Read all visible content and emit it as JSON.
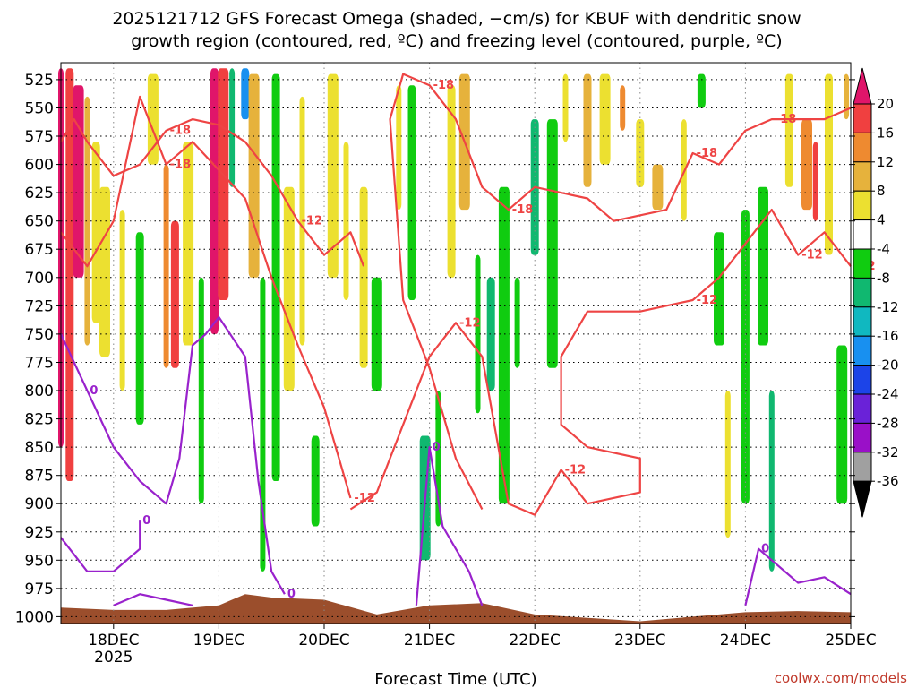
{
  "chart_data": {
    "type": "heatmap",
    "title_line1": "2025121712 GFS Forecast Omega (shaded, −cm/s) for KBUF with dendritic snow",
    "title_line2": "growth region (contoured, red, ºC) and freezing level (contoured, purple, ºC)",
    "xlabel": "Forecast Time (UTC)",
    "credit": "coolwx.com/models",
    "x_ticks": [
      "18DEC",
      "19DEC",
      "20DEC",
      "21DEC",
      "22DEC",
      "23DEC",
      "24DEC",
      "25DEC"
    ],
    "x_year": "2025",
    "x_range": [
      "2025-12-17T12",
      "2025-12-25T00"
    ],
    "y_ticks": [
      "525",
      "550",
      "575",
      "600",
      "625",
      "650",
      "675",
      "700",
      "725",
      "750",
      "775",
      "800",
      "825",
      "850",
      "875",
      "900",
      "925",
      "950",
      "975",
      "1000"
    ],
    "y_range": [
      1006,
      510
    ],
    "colorbar_ticks": [
      "20",
      "16",
      "12",
      "8",
      "4",
      "-4",
      "-8",
      "-12",
      "-16",
      "-20",
      "-24",
      "-28",
      "-32",
      "-36"
    ],
    "colorbar_bins": [
      {
        "range": [
          20,
          24
        ],
        "color": "#e0156a"
      },
      {
        "range": [
          16,
          20
        ],
        "color": "#f04040"
      },
      {
        "range": [
          12,
          16
        ],
        "color": "#ee8a30"
      },
      {
        "range": [
          8,
          12
        ],
        "color": "#e6b23c"
      },
      {
        "range": [
          4,
          8
        ],
        "color": "#ece030"
      },
      {
        "range": [
          -4,
          4
        ],
        "color": "#ffffff"
      },
      {
        "range": [
          -8,
          -4
        ],
        "color": "#10cc10"
      },
      {
        "range": [
          -12,
          -8
        ],
        "color": "#10b870"
      },
      {
        "range": [
          -16,
          -12
        ],
        "color": "#10b8c0"
      },
      {
        "range": [
          -20,
          -16
        ],
        "color": "#1890f0"
      },
      {
        "range": [
          -24,
          -20
        ],
        "color": "#1c44e8"
      },
      {
        "range": [
          -28,
          -24
        ],
        "color": "#6a22d8"
      },
      {
        "range": [
          -32,
          -28
        ],
        "color": "#9a10c8"
      },
      {
        "range": [
          -36,
          -32
        ],
        "color": "#a0a0a0"
      },
      {
        "range": [
          -40,
          -36
        ],
        "color": "#000000"
      }
    ],
    "contour_labels": {
      "red": [
        "-18",
        "-12",
        "-18",
        "-12",
        "-18",
        "-12",
        "-18",
        "-12",
        "-12",
        "-18",
        "-12",
        "-18",
        "-12"
      ],
      "purple": [
        "0",
        "0",
        "0",
        "0",
        "0"
      ]
    },
    "red_contours": [
      {
        "name": "-12",
        "points": [
          [
            "2025-12-17T12",
            580
          ],
          [
            "2025-12-17T15",
            560
          ],
          [
            "2025-12-17T18",
            580
          ],
          [
            "2025-12-18T00",
            610
          ],
          [
            "2025-12-18T06",
            600
          ],
          [
            "2025-12-18T12",
            570
          ],
          [
            "2025-12-18T18",
            560
          ],
          [
            "2025-12-19T00",
            565
          ],
          [
            "2025-12-19T06",
            580
          ],
          [
            "2025-12-19T12",
            610
          ],
          [
            "2025-12-19T18",
            650
          ],
          [
            "2025-12-20T00",
            680
          ],
          [
            "2025-12-20T06",
            660
          ],
          [
            "2025-12-20T09",
            690
          ]
        ]
      },
      {
        "name": "-18",
        "points": [
          [
            "2025-12-17T12",
            660
          ],
          [
            "2025-12-17T18",
            690
          ],
          [
            "2025-12-18T00",
            650
          ],
          [
            "2025-12-18T06",
            540
          ],
          [
            "2025-12-18T12",
            600
          ],
          [
            "2025-12-18T18",
            580
          ],
          [
            "2025-12-19T06",
            630
          ],
          [
            "2025-12-19T12",
            700
          ],
          [
            "2025-12-19T18",
            760
          ],
          [
            "2025-12-20T00",
            815
          ],
          [
            "2025-12-20T06",
            895
          ]
        ]
      },
      {
        "name": "-12",
        "points": [
          [
            "2025-12-20T06",
            905
          ],
          [
            "2025-12-20T12",
            890
          ],
          [
            "2025-12-21T00",
            770
          ],
          [
            "2025-12-21T06",
            740
          ],
          [
            "2025-12-21T12",
            770
          ],
          [
            "2025-12-21T18",
            900
          ],
          [
            "2025-12-22T00",
            910
          ],
          [
            "2025-12-22T06",
            870
          ],
          [
            "2025-12-22T12",
            900
          ],
          [
            "2025-12-23T00",
            890
          ],
          [
            "2025-12-23T00",
            860
          ],
          [
            "2025-12-22T12",
            850
          ]
        ]
      },
      {
        "name": "-18",
        "points": [
          [
            "2025-12-21T12",
            905
          ],
          [
            "2025-12-21T06",
            860
          ],
          [
            "2025-12-21T00",
            780
          ],
          [
            "2025-12-20T18",
            720
          ],
          [
            "2025-12-20T15",
            560
          ],
          [
            "2025-12-20T18",
            520
          ],
          [
            "2025-12-21T00",
            530
          ],
          [
            "2025-12-21T06",
            560
          ],
          [
            "2025-12-21T12",
            620
          ],
          [
            "2025-12-21T18",
            640
          ],
          [
            "2025-12-22T00",
            620
          ],
          [
            "2025-12-22T12",
            630
          ],
          [
            "2025-12-22T18",
            650
          ],
          [
            "2025-12-23T06",
            640
          ],
          [
            "2025-12-23T12",
            590
          ],
          [
            "2025-12-23T18",
            600
          ],
          [
            "2025-12-24T00",
            570
          ],
          [
            "2025-12-24T06",
            560
          ],
          [
            "2025-12-24T18",
            560
          ],
          [
            "2025-12-25T00",
            550
          ]
        ]
      },
      {
        "name": "-12",
        "points": [
          [
            "2025-12-22T12",
            850
          ],
          [
            "2025-12-22T06",
            830
          ],
          [
            "2025-12-22T06",
            770
          ],
          [
            "2025-12-22T12",
            730
          ],
          [
            "2025-12-23T00",
            730
          ],
          [
            "2025-12-23T12",
            720
          ],
          [
            "2025-12-23T18",
            700
          ],
          [
            "2025-12-24T00",
            670
          ],
          [
            "2025-12-24T06",
            640
          ],
          [
            "2025-12-24T12",
            680
          ],
          [
            "2025-12-24T18",
            660
          ],
          [
            "2025-12-25T00",
            690
          ]
        ]
      }
    ],
    "purple_contours": [
      {
        "name": "0",
        "points": [
          [
            "2025-12-17T12",
            750
          ],
          [
            "2025-12-17T18",
            800
          ],
          [
            "2025-12-18T00",
            850
          ],
          [
            "2025-12-18T06",
            880
          ],
          [
            "2025-12-18T12",
            900
          ],
          [
            "2025-12-18T15",
            860
          ],
          [
            "2025-12-18T18",
            760
          ],
          [
            "2025-12-18T21",
            750
          ],
          [
            "2025-12-19T00",
            735
          ],
          [
            "2025-12-19T06",
            770
          ],
          [
            "2025-12-19T09",
            880
          ],
          [
            "2025-12-19T12",
            960
          ],
          [
            "2025-12-19T15",
            980
          ]
        ]
      },
      {
        "name": "0",
        "points": [
          [
            "2025-12-17T12",
            930
          ],
          [
            "2025-12-17T18",
            960
          ],
          [
            "2025-12-18T00",
            960
          ],
          [
            "2025-12-18T06",
            940
          ],
          [
            "2025-12-18T06",
            915
          ]
        ]
      },
      {
        "name": "0",
        "points": [
          [
            "2025-12-20T21",
            990
          ],
          [
            "2025-12-21T00",
            850
          ],
          [
            "2025-12-21T03",
            920
          ],
          [
            "2025-12-21T09",
            960
          ],
          [
            "2025-12-21T12",
            990
          ]
        ]
      },
      {
        "name": "0",
        "points": [
          [
            "2025-12-18T00",
            990
          ],
          [
            "2025-12-18T06",
            980
          ],
          [
            "2025-12-18T12",
            985
          ],
          [
            "2025-12-18T18",
            990
          ]
        ]
      },
      {
        "name": "0",
        "points": [
          [
            "2025-12-24T00",
            990
          ],
          [
            "2025-12-24T03",
            940
          ],
          [
            "2025-12-24T12",
            970
          ],
          [
            "2025-12-24T18",
            965
          ],
          [
            "2025-12-25T00",
            980
          ]
        ]
      }
    ],
    "terrain": {
      "color": "#9b4e2c",
      "points": [
        [
          "2025-12-17T12",
          992
        ],
        [
          "2025-12-18T00",
          994
        ],
        [
          "2025-12-18T12",
          994
        ],
        [
          "2025-12-19T00",
          990
        ],
        [
          "2025-12-19T06",
          980
        ],
        [
          "2025-12-19T12",
          983
        ],
        [
          "2025-12-20T00",
          985
        ],
        [
          "2025-12-20T12",
          998
        ],
        [
          "2025-12-21T00",
          990
        ],
        [
          "2025-12-21T12",
          988
        ],
        [
          "2025-12-22T00",
          998
        ],
        [
          "2025-12-23T00",
          1004
        ],
        [
          "2025-12-23T12",
          1000
        ],
        [
          "2025-12-24T00",
          996
        ],
        [
          "2025-12-24T12",
          995
        ],
        [
          "2025-12-25T00",
          996
        ]
      ]
    },
    "omega_columns": [
      {
        "t": "2025-12-17T12",
        "top": 515,
        "bot": 850,
        "v": 22
      },
      {
        "t": "2025-12-17T14",
        "top": 515,
        "bot": 880,
        "v": 18
      },
      {
        "t": "2025-12-17T16",
        "top": 530,
        "bot": 700,
        "v": 22
      },
      {
        "t": "2025-12-17T18",
        "top": 540,
        "bot": 760,
        "v": 10
      },
      {
        "t": "2025-12-17T20",
        "top": 580,
        "bot": 740,
        "v": 6
      },
      {
        "t": "2025-12-17T22",
        "top": 620,
        "bot": 770,
        "v": 5
      },
      {
        "t": "2025-12-18T02",
        "top": 640,
        "bot": 800,
        "v": 6
      },
      {
        "t": "2025-12-18T06",
        "top": 660,
        "bot": 830,
        "v": -6
      },
      {
        "t": "2025-12-18T09",
        "top": 520,
        "bot": 600,
        "v": 6
      },
      {
        "t": "2025-12-18T12",
        "top": 600,
        "bot": 780,
        "v": 14
      },
      {
        "t": "2025-12-18T14",
        "top": 650,
        "bot": 780,
        "v": 18
      },
      {
        "t": "2025-12-18T17",
        "top": 580,
        "bot": 760,
        "v": 6
      },
      {
        "t": "2025-12-18T20",
        "top": 700,
        "bot": 900,
        "v": -6
      },
      {
        "t": "2025-12-18T23",
        "top": 515,
        "bot": 750,
        "v": 22
      },
      {
        "t": "2025-12-19T01",
        "top": 515,
        "bot": 720,
        "v": 18
      },
      {
        "t": "2025-12-19T03",
        "top": 515,
        "bot": 620,
        "v": -10
      },
      {
        "t": "2025-12-19T06",
        "top": 515,
        "bot": 560,
        "v": -20
      },
      {
        "t": "2025-12-19T08",
        "top": 520,
        "bot": 700,
        "v": 10
      },
      {
        "t": "2025-12-19T10",
        "top": 700,
        "bot": 960,
        "v": -7
      },
      {
        "t": "2025-12-19T13",
        "top": 520,
        "bot": 880,
        "v": -7
      },
      {
        "t": "2025-12-19T16",
        "top": 620,
        "bot": 800,
        "v": 6
      },
      {
        "t": "2025-12-19T19",
        "top": 540,
        "bot": 760,
        "v": 5
      },
      {
        "t": "2025-12-19T22",
        "top": 840,
        "bot": 920,
        "v": -6
      },
      {
        "t": "2025-12-20T02",
        "top": 520,
        "bot": 700,
        "v": 6
      },
      {
        "t": "2025-12-20T05",
        "top": 580,
        "bot": 720,
        "v": 5
      },
      {
        "t": "2025-12-20T09",
        "top": 620,
        "bot": 780,
        "v": 6
      },
      {
        "t": "2025-12-20T12",
        "top": 700,
        "bot": 800,
        "v": -6
      },
      {
        "t": "2025-12-20T17",
        "top": 530,
        "bot": 640,
        "v": 6
      },
      {
        "t": "2025-12-20T20",
        "top": 530,
        "bot": 720,
        "v": -7
      },
      {
        "t": "2025-12-20T23",
        "top": 840,
        "bot": 950,
        "v": -10
      },
      {
        "t": "2025-12-21T02",
        "top": 800,
        "bot": 920,
        "v": -7
      },
      {
        "t": "2025-12-21T05",
        "top": 530,
        "bot": 700,
        "v": 6
      },
      {
        "t": "2025-12-21T08",
        "top": 520,
        "bot": 640,
        "v": 10
      },
      {
        "t": "2025-12-21T11",
        "top": 680,
        "bot": 820,
        "v": -7
      },
      {
        "t": "2025-12-21T14",
        "top": 700,
        "bot": 800,
        "v": -12
      },
      {
        "t": "2025-12-21T17",
        "top": 620,
        "bot": 900,
        "v": -7
      },
      {
        "t": "2025-12-21T20",
        "top": 700,
        "bot": 780,
        "v": -7
      },
      {
        "t": "2025-12-22T00",
        "top": 560,
        "bot": 680,
        "v": -12
      },
      {
        "t": "2025-12-22T04",
        "top": 560,
        "bot": 780,
        "v": -7
      },
      {
        "t": "2025-12-22T07",
        "top": 520,
        "bot": 580,
        "v": 6
      },
      {
        "t": "2025-12-22T12",
        "top": 520,
        "bot": 620,
        "v": 10
      },
      {
        "t": "2025-12-22T16",
        "top": 520,
        "bot": 600,
        "v": 6
      },
      {
        "t": "2025-12-22T20",
        "top": 530,
        "bot": 570,
        "v": 14
      },
      {
        "t": "2025-12-23T00",
        "top": 560,
        "bot": 620,
        "v": 6
      },
      {
        "t": "2025-12-23T04",
        "top": 600,
        "bot": 640,
        "v": 8
      },
      {
        "t": "2025-12-23T10",
        "top": 560,
        "bot": 650,
        "v": 6
      },
      {
        "t": "2025-12-23T14",
        "top": 520,
        "bot": 550,
        "v": -7
      },
      {
        "t": "2025-12-23T18",
        "top": 660,
        "bot": 760,
        "v": -7
      },
      {
        "t": "2025-12-23T20",
        "top": 800,
        "bot": 930,
        "v": 6
      },
      {
        "t": "2025-12-24T00",
        "top": 640,
        "bot": 900,
        "v": -7
      },
      {
        "t": "2025-12-24T04",
        "top": 620,
        "bot": 760,
        "v": -7
      },
      {
        "t": "2025-12-24T06",
        "top": 800,
        "bot": 960,
        "v": -9
      },
      {
        "t": "2025-12-24T10",
        "top": 520,
        "bot": 620,
        "v": 6
      },
      {
        "t": "2025-12-24T14",
        "top": 560,
        "bot": 640,
        "v": 12
      },
      {
        "t": "2025-12-24T16",
        "top": 580,
        "bot": 650,
        "v": 16
      },
      {
        "t": "2025-12-24T19",
        "top": 520,
        "bot": 680,
        "v": 6
      },
      {
        "t": "2025-12-24T22",
        "top": 760,
        "bot": 900,
        "v": -6
      },
      {
        "t": "2025-12-24T23",
        "top": 520,
        "bot": 560,
        "v": 10
      }
    ]
  }
}
